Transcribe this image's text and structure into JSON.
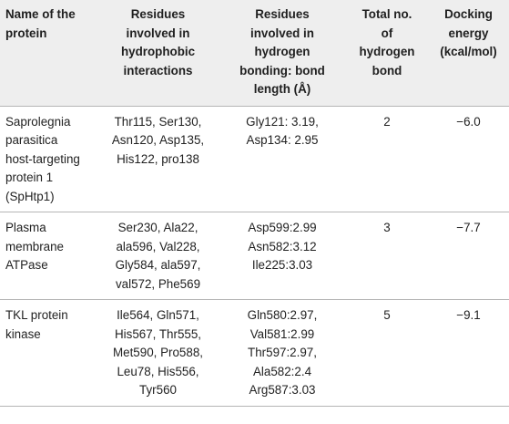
{
  "table": {
    "headers": [
      [
        "Name of the",
        "protein"
      ],
      [
        "Residues",
        "involved in",
        "hydrophobic",
        "interactions"
      ],
      [
        "Residues",
        "involved in",
        "hydrogen",
        "bonding: bond",
        "length (Å)"
      ],
      [
        "Total no.",
        "of",
        "hydrogen",
        "bond"
      ],
      [
        "Docking",
        "energy",
        "(kcal/mol)"
      ]
    ],
    "rows": [
      {
        "name": [
          "Saprolegnia",
          "parasitica",
          "host-targeting",
          "protein 1",
          "(SpHtp1)"
        ],
        "hydrophobic": [
          "Thr115, Ser130,",
          "Asn120, Asp135,",
          "His122, pro138"
        ],
        "hbond": [
          "Gly121: 3.19,",
          "Asp134: 2.95"
        ],
        "total": "2",
        "energy": "−6.0"
      },
      {
        "name": [
          "Plasma",
          "membrane",
          "ATPase"
        ],
        "hydrophobic": [
          "Ser230, Ala22,",
          "ala596, Val228,",
          "Gly584, ala597,",
          "val572, Phe569"
        ],
        "hbond": [
          "Asp599:2.99",
          "Asn582:3.12",
          "Ile225:3.03"
        ],
        "total": "3",
        "energy": "−7.7"
      },
      {
        "name": [
          "TKL protein",
          "kinase"
        ],
        "hydrophobic": [
          "Ile564, Gln571,",
          "His567, Thr555,",
          "Met590, Pro588,",
          "Leu78, His556,",
          "Tyr560"
        ],
        "hbond": [
          "Gln580:2.97,",
          "Val581:2.99",
          "Thr597:2.97,",
          "Ala582:2.4",
          "Arg587:3.03"
        ],
        "total": "5",
        "energy": "−9.1"
      }
    ]
  }
}
